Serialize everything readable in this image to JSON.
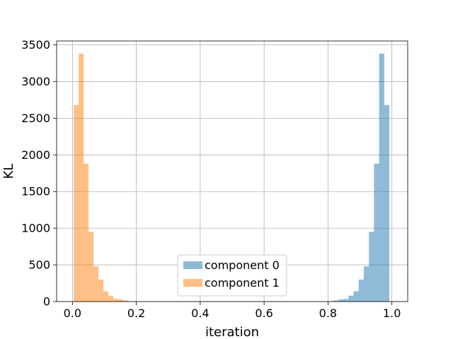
{
  "chart_data": {
    "type": "bar",
    "title": "",
    "xlabel": "iteration",
    "ylabel": "KL",
    "xlim": [
      -0.0495,
      1.0495
    ],
    "ylim": [
      0,
      3553
    ],
    "grid": true,
    "legend_position": "lower-center",
    "x_ticks": [
      0.0,
      0.2,
      0.4,
      0.6,
      0.8,
      1.0
    ],
    "x_tick_labels": [
      "0.0",
      "0.2",
      "0.4",
      "0.6",
      "0.8",
      "1.0"
    ],
    "y_ticks": [
      0,
      500,
      1000,
      1500,
      2000,
      2500,
      3000,
      3500
    ],
    "y_tick_labels": [
      "0",
      "500",
      "1000",
      "1500",
      "2000",
      "2500",
      "3000",
      "3500"
    ],
    "series": [
      {
        "name": "component 0",
        "color": "#1f77b4",
        "opacity": 0.5,
        "bin_edges": [
          0.8,
          0.816,
          0.832,
          0.848,
          0.864,
          0.88,
          0.896,
          0.912,
          0.928,
          0.944,
          0.96,
          0.976,
          0.992
        ],
        "counts": [
          5,
          15,
          30,
          35,
          80,
          140,
          300,
          480,
          950,
          1880,
          3380,
          2680
        ]
      },
      {
        "name": "component 1",
        "color": "#ff7f0e",
        "opacity": 0.5,
        "bin_edges": [
          0.004,
          0.0195,
          0.035,
          0.0505,
          0.066,
          0.0815,
          0.097,
          0.1125,
          0.128,
          0.1435,
          0.159,
          0.1745,
          0.19,
          0.2055
        ],
        "counts": [
          2680,
          3380,
          1880,
          950,
          480,
          300,
          140,
          80,
          35,
          30,
          15,
          5,
          2
        ]
      }
    ]
  }
}
